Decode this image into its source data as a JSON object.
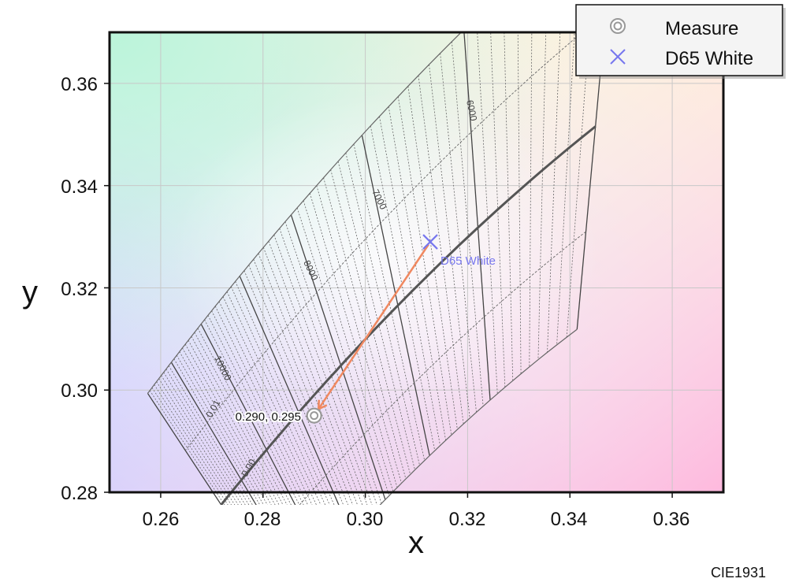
{
  "chart_data": {
    "type": "scatter",
    "title": "",
    "xlabel": "x",
    "ylabel": "y",
    "xlim": [
      0.25,
      0.37
    ],
    "ylim": [
      0.28,
      0.37
    ],
    "x_ticks": [
      "0.26",
      "0.28",
      "0.30",
      "0.32",
      "0.34",
      "0.36"
    ],
    "y_ticks": [
      "0.28",
      "0.30",
      "0.32",
      "0.34",
      "0.36"
    ],
    "grid": true,
    "legend_position": "top-right",
    "series": [
      {
        "name": "Measure",
        "points": [
          [
            0.29,
            0.295
          ]
        ],
        "color": "#aaaaaa"
      },
      {
        "name": "D65 White",
        "points": [
          [
            0.3127,
            0.329
          ]
        ],
        "color": "#7777ee"
      }
    ],
    "annotations": {
      "measure_label": "0.290,  0.295",
      "d65_label": "D65 White",
      "cct_labels": [
        "10000",
        "8000",
        "7000",
        "6000"
      ],
      "duv_labels": [
        "0.01",
        "0.00"
      ],
      "footer": "CIE1931"
    },
    "colors": {
      "arrow": "#f08860",
      "d65": "#7777ee",
      "measure": "#999999",
      "grid_lines": "#555555"
    }
  }
}
